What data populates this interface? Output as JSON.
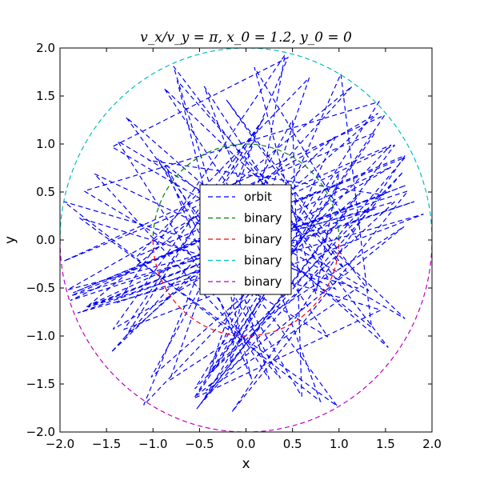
{
  "chart_data": {
    "type": "line",
    "title": "v_x/v_y = π, x_0 = 1.2, y_0 = 0",
    "xlabel": "x",
    "ylabel": "y",
    "xlim": [
      -2.0,
      2.0
    ],
    "ylim": [
      -2.0,
      2.0
    ],
    "xticks": [
      "−2.0",
      "−1.5",
      "−1.0",
      "−0.5",
      "0.0",
      "0.5",
      "1.0",
      "1.5",
      "2.0"
    ],
    "yticks": [
      "−2.0",
      "−1.5",
      "−1.0",
      "−0.5",
      "0.0",
      "0.5",
      "1.0",
      "1.5",
      "2.0"
    ],
    "grid": false,
    "legend_position": "center",
    "series": [
      {
        "name": "orbit",
        "color": "#0000ff",
        "style": "dashed",
        "kind": "polyline",
        "x": [
          1.2,
          0.09,
          0.75,
          1.0,
          -0.48,
          1.69,
          -0.55,
          0.75,
          -1.86,
          1.71,
          -0.43,
          1.2,
          -1.96,
          0.8,
          -0.45,
          0.96,
          -1.63,
          0.37,
          -0.95,
          1.35,
          1.02,
          -0.4,
          0.68,
          -1.17,
          1.56,
          -1.1,
          0.45,
          -1.44,
          1.71,
          -0.88,
          0.88,
          -1.74,
          1.43,
          -0.56,
          1.45,
          -1.79,
          0.98,
          -1.29,
          1.53,
          -0.78,
          0.25,
          -1.38,
          1.32,
          -0.21,
          1.08,
          -0.74,
          0.06,
          -0.87,
          0.6,
          0.5,
          -1.02,
          1.23,
          -0.53,
          1.6,
          -1.89,
          1.74,
          -0.15,
          1.71,
          -1.88,
          1.6,
          -0.38,
          1.39,
          -1.96,
          1.49,
          -0.53,
          1.7,
          -0.82,
          0.09,
          -1.31,
          1.91,
          -1.81,
          1.4,
          -1.92,
          1.42,
          -1.29,
          0.2,
          -1.43,
          1.56,
          -1.69,
          1.14,
          -1.45,
          0.97,
          -0.17,
          0.42,
          -1.38,
          1.81,
          -1.7,
          1.72,
          -1.73,
          1.47,
          -1.05
        ],
        "y": [
          0.0,
          1.8,
          -0.56,
          0.7,
          -1.7,
          0.71,
          -1.55,
          0.5,
          -0.55,
          0.86,
          -1.57,
          -0.5,
          0.4,
          -1.68,
          1.6,
          -0.51,
          0.69,
          -1.44,
          0.85,
          -0.91,
          1.73,
          -1.39,
          1.69,
          -0.17,
          0.99,
          -1.72,
          1.9,
          0.97,
          -0.82,
          1.58,
          -1.01,
          0.51,
          1.44,
          -1.65,
          -0.73,
          0.23,
          -1.73,
          1.28,
          -1.12,
          1.81,
          -1.45,
          1.03,
          -0.53,
          1.46,
          -0.33,
          1.66,
          -1.45,
          0.78,
          -1.63,
          1.25,
          -1.43,
          0.49,
          -1.76,
          0.99,
          -0.63,
          0.51,
          -1.79,
          0.88,
          -0.58,
          0.4,
          -1.38,
          1.12,
          -0.22,
          1.3,
          -1.62,
          0.14,
          -1.46,
          1.04,
          -0.93,
          0.27,
          -0.76,
          0.33,
          -0.52,
          1.32,
          -1.0,
          1.28,
          -0.93,
          0.76,
          -0.68,
          1.6,
          -1.17,
          1.09,
          -1.26,
          1.93,
          -0.65,
          0.4,
          -0.7,
          0.57,
          -0.7,
          0.47,
          0.83
        ]
      },
      {
        "name": "binary",
        "color": "#008000",
        "style": "dashed",
        "kind": "arc",
        "radius": 1.0,
        "deg_from": 0,
        "deg_to": 180
      },
      {
        "name": "binary",
        "color": "#ff0000",
        "style": "dashed",
        "kind": "arc",
        "radius": 1.0,
        "deg_from": 180,
        "deg_to": 360
      },
      {
        "name": "binary",
        "color": "#00bfbf",
        "style": "dashed",
        "kind": "arc",
        "radius": 2.0,
        "deg_from": 0,
        "deg_to": 180
      },
      {
        "name": "binary",
        "color": "#bf00bf",
        "style": "dashed",
        "kind": "arc",
        "radius": 2.0,
        "deg_from": 180,
        "deg_to": 360
      }
    ]
  }
}
